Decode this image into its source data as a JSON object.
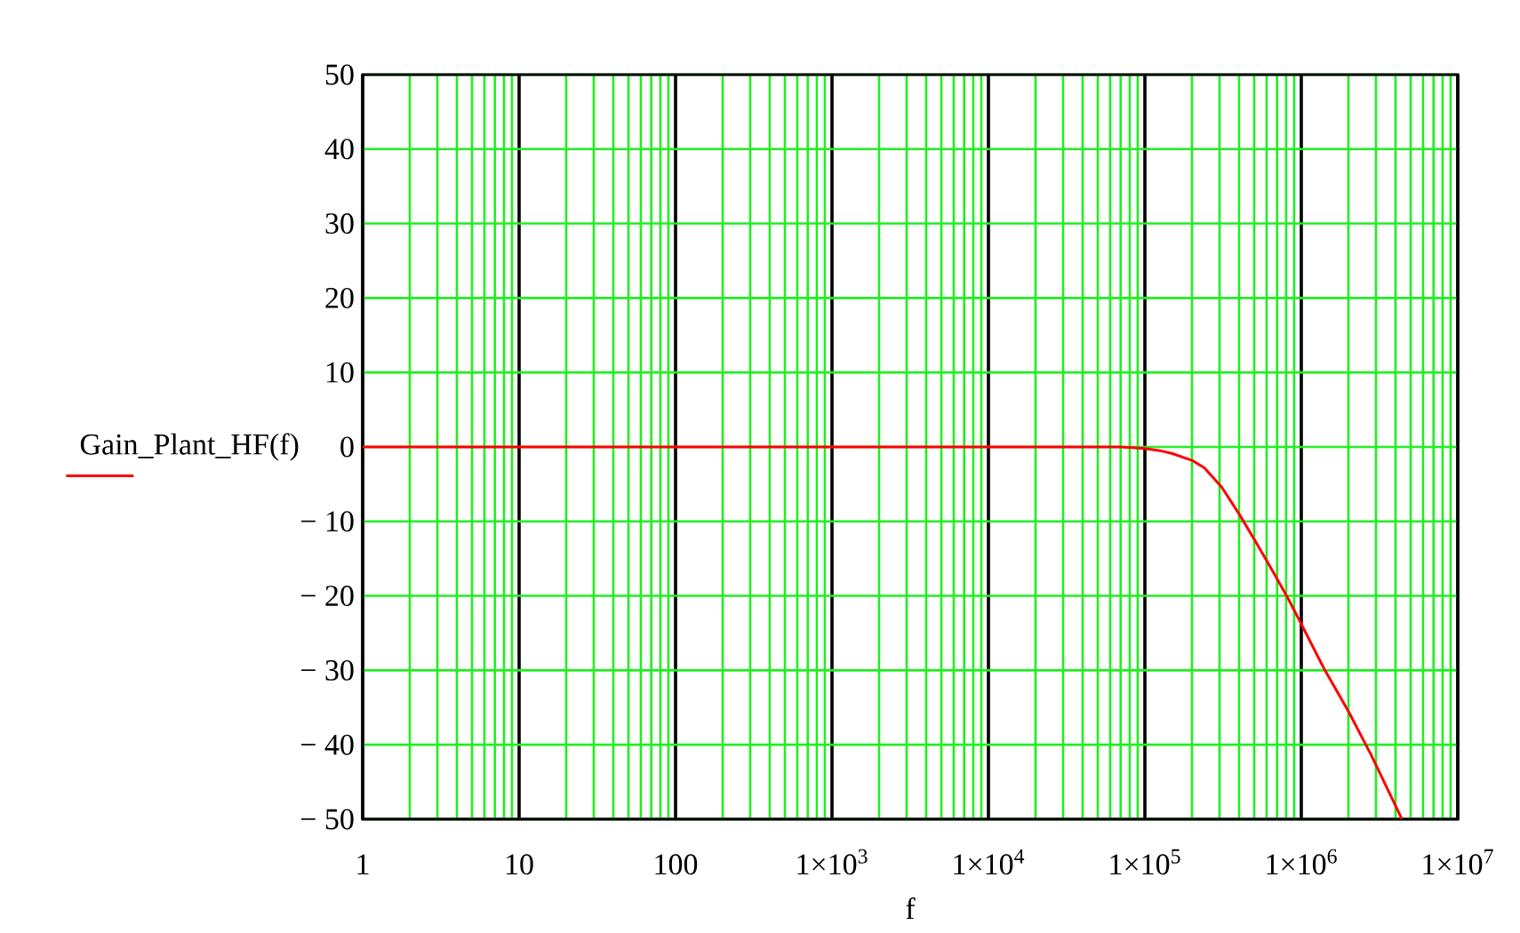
{
  "chart_data": {
    "type": "line",
    "xlabel": "f",
    "ylabel": "Gain_Plant_HF(f)",
    "log": "x",
    "grid": true,
    "marker": "none",
    "line_style": "solid",
    "xlim": [
      1,
      10000000
    ],
    "ylim": [
      -50,
      50
    ],
    "xticks": [
      1,
      10,
      100,
      {
        "value": 1000,
        "label": "1×10$^{3}$"
      },
      {
        "value": 10000,
        "label": "1×10$^{4}$"
      },
      {
        "value": 100000,
        "label": "1×10$^{5}$"
      },
      {
        "value": 1000000,
        "label": "1×10$^{6}$"
      },
      {
        "value": 10000000,
        "label": "1×10$^{7}$"
      }
    ],
    "yticks": [
      {
        "value": -50,
        "label": "− 50"
      },
      {
        "value": -40,
        "label": "− 40"
      },
      {
        "value": -30,
        "label": "− 30"
      },
      {
        "value": -20,
        "label": "− 20"
      },
      {
        "value": -10,
        "label": "− 10"
      },
      0,
      10,
      20,
      30,
      40,
      50
    ],
    "color": "#ff0000",
    "x": [
      1,
      10,
      100,
      1000,
      10000,
      70000,
      100000,
      125000,
      150000,
      200000,
      240000,
      310000,
      400000,
      520000,
      670000,
      830000,
      1000000,
      1400000,
      2000000,
      2800000,
      4400000
    ],
    "values": [
      0,
      0,
      0,
      0,
      0,
      0,
      -0.2,
      -0.5,
      -0.9,
      -1.8,
      -2.8,
      -5.4,
      -9,
      -13,
      -17,
      -20.5,
      -23.8,
      -29.8,
      -35.5,
      -41.4,
      -50
    ]
  }
}
